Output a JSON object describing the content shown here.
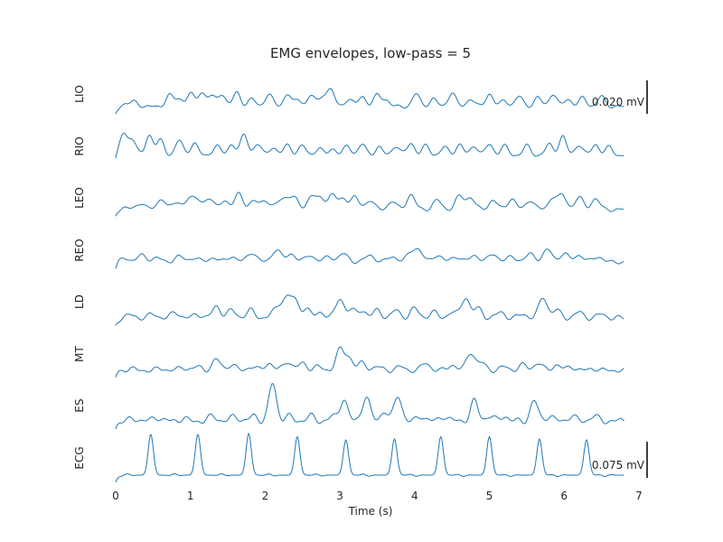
{
  "chart_data": {
    "type": "line",
    "title": "EMG envelopes, low-pass = 5",
    "xlabel": "Time (s)",
    "ylabel": "",
    "xlim": [
      0,
      7
    ],
    "x_ticks": [
      "0",
      "1",
      "2",
      "3",
      "4",
      "5",
      "6",
      "7"
    ],
    "grid": false,
    "legend": "none",
    "scale_bars": [
      {
        "label": "0.020 mV",
        "channel": "LIO"
      },
      {
        "label": "0.075 mV",
        "channel": "ECG"
      }
    ],
    "series": [
      {
        "name": "LIO",
        "peaks": [
          [
            0.12,
            0.1
          ],
          [
            0.25,
            0.2
          ],
          [
            0.72,
            0.45
          ],
          [
            0.85,
            0.3
          ],
          [
            1.0,
            0.5
          ],
          [
            1.15,
            0.55
          ],
          [
            1.28,
            0.4
          ],
          [
            1.42,
            0.5
          ],
          [
            1.62,
            0.55
          ],
          [
            1.82,
            0.3
          ],
          [
            2.05,
            0.5
          ],
          [
            2.3,
            0.5
          ],
          [
            2.45,
            0.25
          ],
          [
            2.62,
            0.45
          ],
          [
            2.78,
            0.4
          ],
          [
            2.88,
            0.62
          ],
          [
            3.12,
            0.3
          ],
          [
            3.3,
            0.4
          ],
          [
            3.5,
            0.45
          ],
          [
            3.62,
            0.25
          ],
          [
            4.02,
            0.5
          ],
          [
            4.25,
            0.3
          ],
          [
            4.5,
            0.55
          ],
          [
            4.75,
            0.3
          ],
          [
            5.0,
            0.5
          ],
          [
            5.2,
            0.25
          ],
          [
            5.4,
            0.4
          ],
          [
            5.65,
            0.35
          ],
          [
            5.85,
            0.5
          ],
          [
            6.05,
            0.3
          ],
          [
            6.25,
            0.35
          ],
          [
            6.5,
            0.4
          ]
        ]
      },
      {
        "name": "RIO",
        "peaks": [
          [
            0.1,
            0.8
          ],
          [
            0.22,
            0.6
          ],
          [
            0.45,
            0.75
          ],
          [
            0.6,
            0.55
          ],
          [
            0.85,
            0.55
          ],
          [
            1.05,
            0.45
          ],
          [
            1.35,
            0.35
          ],
          [
            1.55,
            0.4
          ],
          [
            1.72,
            0.75
          ],
          [
            1.9,
            0.4
          ],
          [
            2.1,
            0.3
          ],
          [
            2.3,
            0.4
          ],
          [
            2.5,
            0.35
          ],
          [
            2.72,
            0.25
          ],
          [
            2.9,
            0.25
          ],
          [
            3.1,
            0.35
          ],
          [
            3.3,
            0.4
          ],
          [
            3.52,
            0.3
          ],
          [
            3.75,
            0.35
          ],
          [
            3.95,
            0.45
          ],
          [
            4.15,
            0.35
          ],
          [
            4.4,
            0.3
          ],
          [
            4.6,
            0.4
          ],
          [
            4.8,
            0.35
          ],
          [
            5.0,
            0.4
          ],
          [
            5.2,
            0.35
          ],
          [
            5.5,
            0.35
          ],
          [
            5.8,
            0.4
          ],
          [
            5.98,
            0.7
          ],
          [
            6.2,
            0.4
          ],
          [
            6.42,
            0.4
          ],
          [
            6.6,
            0.3
          ]
        ]
      },
      {
        "name": "LEO",
        "peaks": [
          [
            0.12,
            0.1
          ],
          [
            0.35,
            0.25
          ],
          [
            0.62,
            0.4
          ],
          [
            0.82,
            0.25
          ],
          [
            0.98,
            0.4
          ],
          [
            1.1,
            0.35
          ],
          [
            1.25,
            0.4
          ],
          [
            1.45,
            0.35
          ],
          [
            1.65,
            0.6
          ],
          [
            1.85,
            0.3
          ],
          [
            2.0,
            0.35
          ],
          [
            2.2,
            0.3
          ],
          [
            2.3,
            0.35
          ],
          [
            2.4,
            0.35
          ],
          [
            2.62,
            0.5
          ],
          [
            2.75,
            0.4
          ],
          [
            2.9,
            0.55
          ],
          [
            3.05,
            0.4
          ],
          [
            3.2,
            0.45
          ],
          [
            3.4,
            0.35
          ],
          [
            3.7,
            0.3
          ],
          [
            3.95,
            0.55
          ],
          [
            4.3,
            0.35
          ],
          [
            4.6,
            0.5
          ],
          [
            4.75,
            0.45
          ],
          [
            5.05,
            0.35
          ],
          [
            5.3,
            0.4
          ],
          [
            5.55,
            0.35
          ],
          [
            5.85,
            0.45
          ],
          [
            5.98,
            0.5
          ],
          [
            6.2,
            0.45
          ],
          [
            6.42,
            0.4
          ]
        ]
      },
      {
        "name": "REO",
        "peaks": [
          [
            0.12,
            0.15
          ],
          [
            0.35,
            0.25
          ],
          [
            0.55,
            0.15
          ],
          [
            0.85,
            0.2
          ],
          [
            1.05,
            0.15
          ],
          [
            1.3,
            0.15
          ],
          [
            1.55,
            0.2
          ],
          [
            1.82,
            0.35
          ],
          [
            2.15,
            0.45
          ],
          [
            2.35,
            0.3
          ],
          [
            2.6,
            0.25
          ],
          [
            2.85,
            0.2
          ],
          [
            3.05,
            0.3
          ],
          [
            3.4,
            0.25
          ],
          [
            3.7,
            0.2
          ],
          [
            3.95,
            0.3
          ],
          [
            4.05,
            0.4
          ],
          [
            4.3,
            0.25
          ],
          [
            4.55,
            0.2
          ],
          [
            4.8,
            0.25
          ],
          [
            5.05,
            0.3
          ],
          [
            5.3,
            0.2
          ],
          [
            5.55,
            0.3
          ],
          [
            5.78,
            0.45
          ],
          [
            6.0,
            0.3
          ],
          [
            6.2,
            0.25
          ],
          [
            6.45,
            0.2
          ]
        ]
      },
      {
        "name": "LD",
        "peaks": [
          [
            0.2,
            0.08
          ],
          [
            0.5,
            0.1
          ],
          [
            0.8,
            0.15
          ],
          [
            1.1,
            0.1
          ],
          [
            1.35,
            0.3
          ],
          [
            1.55,
            0.2
          ],
          [
            1.8,
            0.2
          ],
          [
            2.1,
            0.1
          ],
          [
            2.2,
            0.3
          ],
          [
            2.3,
            0.45
          ],
          [
            2.4,
            0.4
          ],
          [
            2.55,
            0.25
          ],
          [
            2.75,
            0.15
          ],
          [
            3.0,
            0.5
          ],
          [
            3.15,
            0.2
          ],
          [
            3.3,
            0.2
          ],
          [
            3.5,
            0.2
          ],
          [
            3.75,
            0.2
          ],
          [
            4.0,
            0.25
          ],
          [
            4.25,
            0.15
          ],
          [
            4.5,
            0.15
          ],
          [
            4.68,
            0.55
          ],
          [
            4.85,
            0.25
          ],
          [
            5.15,
            0.15
          ],
          [
            5.45,
            0.1
          ],
          [
            5.72,
            0.55
          ],
          [
            5.9,
            0.2
          ],
          [
            6.2,
            0.15
          ],
          [
            6.5,
            0.1
          ]
        ]
      },
      {
        "name": "MT",
        "peaks": [
          [
            0.2,
            0.05
          ],
          [
            0.6,
            0.05
          ],
          [
            0.9,
            0.08
          ],
          [
            1.1,
            0.1
          ],
          [
            1.35,
            0.3
          ],
          [
            1.55,
            0.15
          ],
          [
            1.82,
            0.1
          ],
          [
            2.05,
            0.2
          ],
          [
            2.3,
            0.25
          ],
          [
            2.5,
            0.2
          ],
          [
            2.7,
            0.1
          ],
          [
            3.0,
            0.55
          ],
          [
            3.12,
            0.35
          ],
          [
            3.3,
            0.2
          ],
          [
            3.5,
            0.1
          ],
          [
            3.8,
            0.1
          ],
          [
            4.15,
            0.2
          ],
          [
            4.5,
            0.15
          ],
          [
            4.75,
            0.5
          ],
          [
            4.9,
            0.2
          ],
          [
            5.2,
            0.1
          ],
          [
            5.45,
            0.15
          ],
          [
            5.65,
            0.2
          ],
          [
            5.9,
            0.15
          ],
          [
            6.1,
            0.1
          ],
          [
            6.4,
            0.05
          ]
        ]
      },
      {
        "name": "ES",
        "peaks": [
          [
            0.25,
            0.05
          ],
          [
            0.55,
            0.08
          ],
          [
            0.9,
            0.05
          ],
          [
            1.3,
            0.1
          ],
          [
            1.6,
            0.1
          ],
          [
            1.85,
            0.1
          ],
          [
            2.1,
            0.75
          ],
          [
            2.3,
            0.1
          ],
          [
            2.6,
            0.1
          ],
          [
            2.9,
            0.08
          ],
          [
            3.05,
            0.45
          ],
          [
            3.35,
            0.5
          ],
          [
            3.6,
            0.2
          ],
          [
            3.78,
            0.5
          ],
          [
            4.1,
            0.1
          ],
          [
            4.4,
            0.1
          ],
          [
            4.8,
            0.4
          ],
          [
            5.0,
            0.1
          ],
          [
            5.2,
            0.1
          ],
          [
            5.6,
            0.4
          ],
          [
            5.8,
            0.1
          ],
          [
            6.1,
            0.1
          ],
          [
            6.4,
            0.1
          ]
        ]
      },
      {
        "name": "ECG",
        "peaks": [
          [
            0.47,
            0.9
          ],
          [
            1.1,
            0.9
          ],
          [
            1.78,
            0.92
          ],
          [
            2.43,
            0.85
          ],
          [
            3.08,
            0.78
          ],
          [
            3.73,
            0.8
          ],
          [
            4.35,
            0.85
          ],
          [
            5.0,
            0.85
          ],
          [
            5.67,
            0.8
          ],
          [
            6.3,
            0.78
          ]
        ]
      }
    ]
  }
}
